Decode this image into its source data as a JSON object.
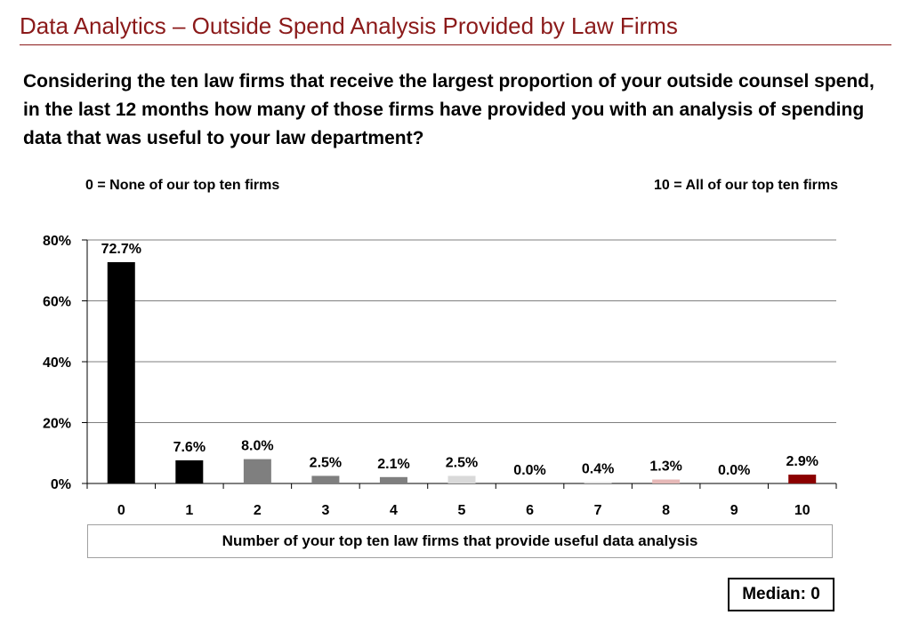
{
  "header": {
    "title": "Data Analytics – Outside Spend Analysis Provided by Law Firms",
    "question": "Considering the ten law firms that receive the largest proportion of your outside counsel spend, in the last 12 months how many of those firms have provided you with an analysis of spending data that was useful to your law department?"
  },
  "scale": {
    "min_note": "0 = None of our top ten firms",
    "max_note": "10 = All of our top ten firms"
  },
  "median": "Median: 0",
  "chart_data": {
    "type": "bar",
    "title": "",
    "xlabel": "Number of your top ten law firms that provide useful data analysis",
    "ylabel": "",
    "categories": [
      "0",
      "1",
      "2",
      "3",
      "4",
      "5",
      "6",
      "7",
      "8",
      "9",
      "10"
    ],
    "values": [
      72.7,
      7.6,
      8.0,
      2.5,
      2.1,
      2.5,
      0.0,
      0.4,
      1.3,
      0.0,
      2.9
    ],
    "data_labels": [
      "72.7%",
      "7.6%",
      "8.0%",
      "2.5%",
      "2.1%",
      "2.5%",
      "0.0%",
      "0.4%",
      "1.3%",
      "0.0%",
      "2.9%"
    ],
    "bar_colors": [
      "#000000",
      "#000000",
      "#7f7f7f",
      "#7f7f7f",
      "#7f7f7f",
      "#d9d9d9",
      "#d9d9d9",
      "#d9d9d9",
      "#e6b8b7",
      "#c00000",
      "#8b0000"
    ],
    "ylim": [
      0,
      80
    ],
    "yticks": [
      0,
      20,
      40,
      60,
      80
    ],
    "ytick_labels": [
      "0%",
      "20%",
      "40%",
      "60%",
      "80%"
    ],
    "grid": true,
    "legend": "none"
  }
}
